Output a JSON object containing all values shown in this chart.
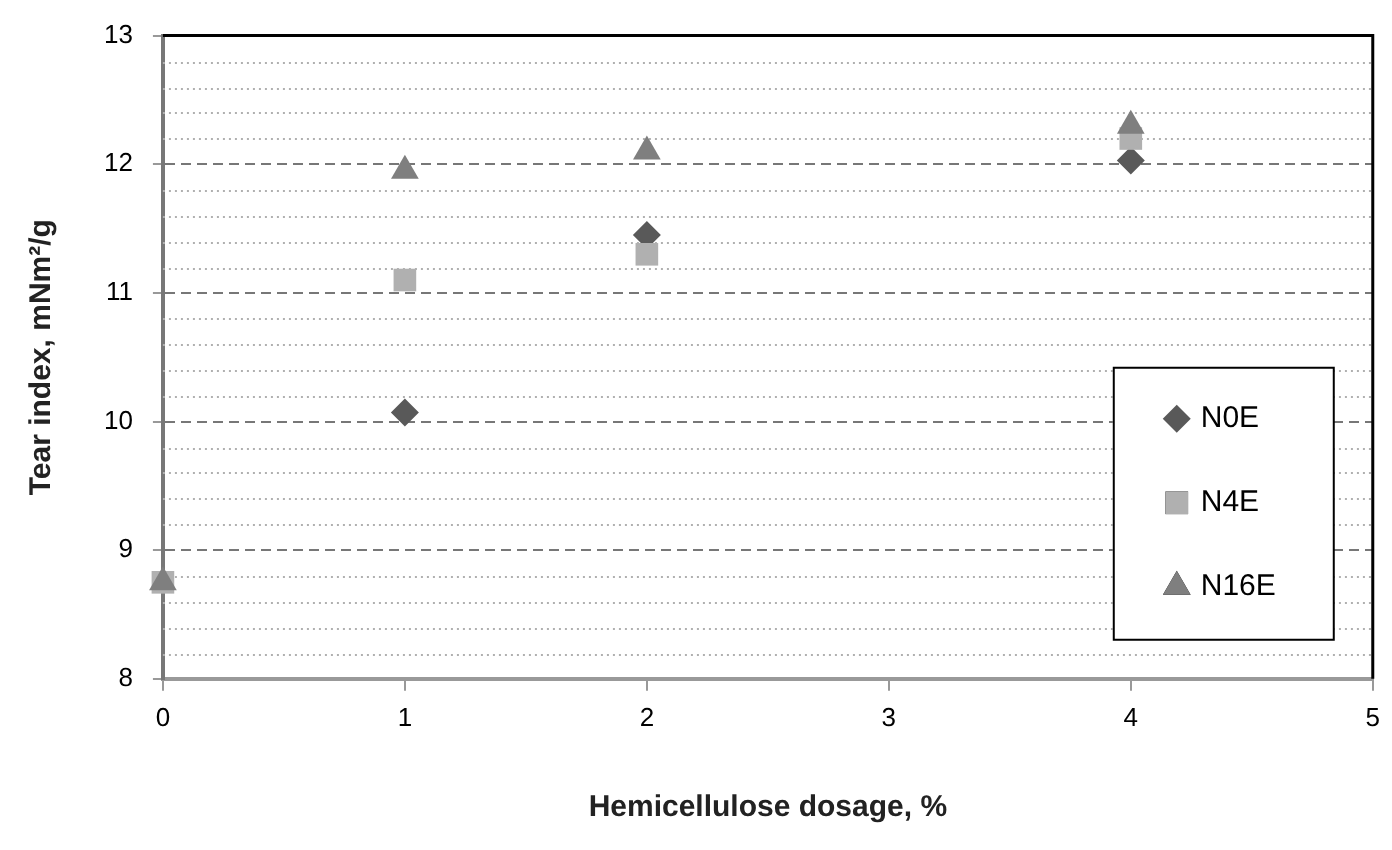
{
  "chart_data": {
    "type": "scatter",
    "xlabel": "Hemicellulose dosage, %",
    "ylabel": "Tear index, mNm²/g",
    "xlim": [
      0,
      5
    ],
    "xticks": [
      0,
      1,
      2,
      3,
      4,
      5
    ],
    "ylim": [
      8,
      13
    ],
    "yticks": [
      8,
      9,
      10,
      11,
      12,
      13
    ],
    "grid": "y",
    "legend": "bottom right",
    "x": [
      0,
      1,
      2,
      4
    ],
    "series": [
      {
        "name": "N0E",
        "color": "#595959",
        "marker": "diamond",
        "values": [
          null,
          10.07,
          11.45,
          12.03
        ]
      },
      {
        "name": "N4E",
        "color": "#b0b0b0",
        "marker": "square",
        "values": [
          8.75,
          11.1,
          11.3,
          12.2
        ]
      },
      {
        "name": "N16E",
        "color": "#7f7f7f",
        "marker": "triangle",
        "values": [
          8.75,
          11.95,
          12.1,
          12.3
        ]
      }
    ]
  }
}
